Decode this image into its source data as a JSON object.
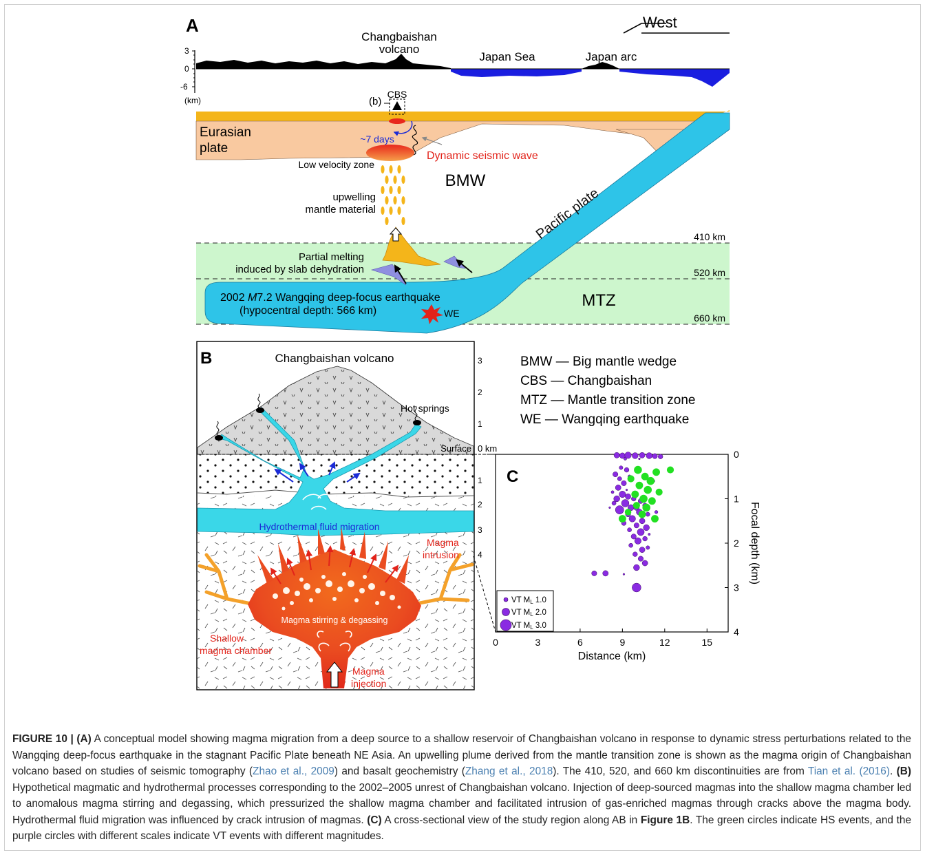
{
  "panelA": {
    "label": "A",
    "direction": "West",
    "topo_ticks": [
      "3",
      "0",
      "-6",
      "(km)"
    ],
    "volcano": [
      "Changbaishan",
      "volcano"
    ],
    "japan_sea": "Japan Sea",
    "japan_arc": "Japan arc",
    "b_marker": "(b)",
    "cbs": "CBS",
    "eurasian": [
      "Eurasian",
      "plate"
    ],
    "days": "~7 days",
    "dynamic_wave": "Dynamic seismic wave",
    "low_velocity": "Low velocity zone",
    "bmw": "BMW",
    "upwelling": [
      "upwelling",
      "mantle material"
    ],
    "pacific": "Pacific plate",
    "d410": "410 km",
    "d520": "520 km",
    "d660": "660 km",
    "partial": [
      "Partial melting",
      "induced by slab dehydration"
    ],
    "quake_pre": "2002 ",
    "quake_mag": "M",
    "quake_post": "7.2 Wangqing deep-focus earthquake",
    "hypo": "(hypocentral depth: 566 km)",
    "we": "WE",
    "mtz": "MTZ"
  },
  "panelB": {
    "label": "B",
    "title": "Changbaishan volcano",
    "hot_springs": "Hot springs",
    "surface": "Surface",
    "zero_km": "0 km",
    "depth_ticks": [
      "3",
      "2",
      "1",
      "1",
      "2",
      "3",
      "4"
    ],
    "hydro": "Hydrothermal fluid migration",
    "intrusion": [
      "Magma",
      "intrusion"
    ],
    "stirring": "Magma stirring & degassing",
    "chamber": [
      "Shallow",
      "magma chamber"
    ],
    "injection": [
      "Magma",
      "injection"
    ]
  },
  "legend": [
    {
      "abbr": "BMW",
      "text": "Big mantle wedge"
    },
    {
      "abbr": "CBS",
      "text": "Changbaishan"
    },
    {
      "abbr": "MTZ",
      "text": "Mantle transition zone"
    },
    {
      "abbr": "WE",
      "text": "Wangqing earthquake"
    }
  ],
  "panelC": {
    "label": "C",
    "legend": [
      {
        "text": "VT  M",
        "sub": "L",
        "val": " 1.0"
      },
      {
        "text": "VT  M",
        "sub": "L",
        "val": " 2.0"
      },
      {
        "text": "VT  M",
        "sub": "L",
        "val": " 3.0"
      }
    ]
  },
  "chart_data": {
    "type": "scatter",
    "title": "",
    "xlabel": "Distance (km)",
    "ylabel": "Focal depth (km)",
    "xlim": [
      0,
      16.5
    ],
    "ylim": [
      4,
      0
    ],
    "xticks": [
      0,
      3,
      6,
      9,
      12,
      15
    ],
    "yticks": [
      0,
      1,
      2,
      3,
      4
    ],
    "colors": {
      "VT": "#8a2be2",
      "HS": "#22e022"
    },
    "series": [
      {
        "name": "VT",
        "points": [
          {
            "x": 8.6,
            "y": 0.02,
            "m": 1.8
          },
          {
            "x": 9.0,
            "y": 0.03,
            "m": 1.8
          },
          {
            "x": 9.4,
            "y": 0.02,
            "m": 2.0
          },
          {
            "x": 9.9,
            "y": 0.03,
            "m": 1.9
          },
          {
            "x": 10.4,
            "y": 0.02,
            "m": 1.8
          },
          {
            "x": 10.9,
            "y": 0.03,
            "m": 1.9
          },
          {
            "x": 11.3,
            "y": 0.04,
            "m": 1.7
          },
          {
            "x": 11.7,
            "y": 0.05,
            "m": 1.6
          },
          {
            "x": 9.2,
            "y": 0.1,
            "m": 1.2
          },
          {
            "x": 10.2,
            "y": 0.1,
            "m": 1.0
          },
          {
            "x": 8.9,
            "y": 0.3,
            "m": 1.4
          },
          {
            "x": 9.3,
            "y": 0.35,
            "m": 1.6
          },
          {
            "x": 8.5,
            "y": 0.45,
            "m": 1.7
          },
          {
            "x": 8.8,
            "y": 0.55,
            "m": 1.5
          },
          {
            "x": 9.5,
            "y": 0.5,
            "m": 1.3
          },
          {
            "x": 9.1,
            "y": 0.65,
            "m": 1.7
          },
          {
            "x": 8.7,
            "y": 0.75,
            "m": 1.8
          },
          {
            "x": 8.3,
            "y": 0.85,
            "m": 1.2
          },
          {
            "x": 9.0,
            "y": 0.9,
            "m": 2.0
          },
          {
            "x": 9.4,
            "y": 0.95,
            "m": 1.8
          },
          {
            "x": 8.6,
            "y": 1.0,
            "m": 1.9
          },
          {
            "x": 9.8,
            "y": 1.0,
            "m": 1.6
          },
          {
            "x": 10.3,
            "y": 1.05,
            "m": 1.7
          },
          {
            "x": 8.4,
            "y": 1.1,
            "m": 1.5
          },
          {
            "x": 9.2,
            "y": 1.1,
            "m": 2.2
          },
          {
            "x": 9.6,
            "y": 1.2,
            "m": 1.9
          },
          {
            "x": 10.0,
            "y": 1.2,
            "m": 1.8
          },
          {
            "x": 10.6,
            "y": 1.15,
            "m": 1.6
          },
          {
            "x": 8.8,
            "y": 1.25,
            "m": 2.4
          },
          {
            "x": 9.4,
            "y": 1.35,
            "m": 1.7
          },
          {
            "x": 10.2,
            "y": 1.3,
            "m": 1.9
          },
          {
            "x": 10.8,
            "y": 1.35,
            "m": 1.5
          },
          {
            "x": 9.7,
            "y": 1.45,
            "m": 2.0
          },
          {
            "x": 10.4,
            "y": 1.5,
            "m": 1.8
          },
          {
            "x": 9.1,
            "y": 1.55,
            "m": 1.6
          },
          {
            "x": 10.0,
            "y": 1.6,
            "m": 1.7
          },
          {
            "x": 10.7,
            "y": 1.65,
            "m": 1.9
          },
          {
            "x": 9.5,
            "y": 1.7,
            "m": 1.5
          },
          {
            "x": 10.3,
            "y": 1.75,
            "m": 2.1
          },
          {
            "x": 9.8,
            "y": 1.85,
            "m": 1.7
          },
          {
            "x": 10.6,
            "y": 1.9,
            "m": 1.6
          },
          {
            "x": 10.1,
            "y": 1.95,
            "m": 2.0
          },
          {
            "x": 9.6,
            "y": 2.05,
            "m": 1.5
          },
          {
            "x": 10.4,
            "y": 2.15,
            "m": 1.8
          },
          {
            "x": 10.8,
            "y": 2.1,
            "m": 1.4
          },
          {
            "x": 9.9,
            "y": 2.25,
            "m": 1.6
          },
          {
            "x": 10.3,
            "y": 2.35,
            "m": 1.7
          },
          {
            "x": 10.6,
            "y": 2.45,
            "m": 1.8
          },
          {
            "x": 10.0,
            "y": 2.55,
            "m": 1.9
          },
          {
            "x": 7.0,
            "y": 2.68,
            "m": 1.7
          },
          {
            "x": 7.8,
            "y": 2.68,
            "m": 1.8
          },
          {
            "x": 9.1,
            "y": 2.7,
            "m": 1.0
          },
          {
            "x": 10.0,
            "y": 3.0,
            "m": 2.5
          },
          {
            "x": 11.2,
            "y": 0.6,
            "m": 1.2
          },
          {
            "x": 11.4,
            "y": 1.3,
            "m": 1.3
          },
          {
            "x": 9.3,
            "y": 0.8,
            "m": 1.0
          },
          {
            "x": 8.1,
            "y": 1.2,
            "m": 1.0
          },
          {
            "x": 10.9,
            "y": 1.8,
            "m": 1.1
          }
        ]
      },
      {
        "name": "HS",
        "points": [
          {
            "x": 10.1,
            "y": 0.35,
            "m": 2.3
          },
          {
            "x": 11.4,
            "y": 0.4,
            "m": 2.2
          },
          {
            "x": 12.4,
            "y": 0.35,
            "m": 2.1
          },
          {
            "x": 10.6,
            "y": 0.5,
            "m": 2.2
          },
          {
            "x": 9.6,
            "y": 0.55,
            "m": 2.1
          },
          {
            "x": 11.0,
            "y": 0.6,
            "m": 2.3
          },
          {
            "x": 10.2,
            "y": 0.7,
            "m": 2.2
          },
          {
            "x": 10.8,
            "y": 0.8,
            "m": 2.3
          },
          {
            "x": 11.6,
            "y": 0.85,
            "m": 2.1
          },
          {
            "x": 9.9,
            "y": 0.9,
            "m": 2.2
          },
          {
            "x": 10.5,
            "y": 1.0,
            "m": 2.3
          },
          {
            "x": 11.1,
            "y": 1.05,
            "m": 2.2
          },
          {
            "x": 10.0,
            "y": 1.15,
            "m": 2.1
          },
          {
            "x": 10.7,
            "y": 1.2,
            "m": 2.3
          },
          {
            "x": 9.4,
            "y": 1.3,
            "m": 2.0
          },
          {
            "x": 10.4,
            "y": 1.35,
            "m": 2.2
          },
          {
            "x": 9.0,
            "y": 1.45,
            "m": 2.2
          },
          {
            "x": 11.3,
            "y": 1.45,
            "m": 2.2
          }
        ]
      }
    ]
  },
  "caption": {
    "label": "FIGURE 10 | ",
    "a": "(A)",
    "t1": " A conceptual model showing magma migration from a deep source to a shallow reservoir of Changbaishan volcano in response to dynamic stress perturbations related to the Wangqing deep-focus earthquake in the stagnant Pacific Plate beneath NE Asia. An upwelling plume derived from the mantle transition zone is shown as the magma origin of Changbaishan volcano based on studies of seismic tomography (",
    "r1": "Zhao et al., 2009",
    "t2": ") and basalt geochemistry (",
    "r2": "Zhang et al., 2018",
    "t3": "). The 410, 520, and 660 km discontinuities are from ",
    "r3": "Tian et al. (2016)",
    "t4": ". ",
    "b": "(B)",
    "t5": " Hypothetical magmatic and hydrothermal processes corresponding to the 2002–2005 unrest of Changbaishan volcano. Injection of deep-sourced magmas into the shallow magma chamber led to anomalous magma stirring and degassing, which pressurized the shallow magma chamber and facilitated intrusion of gas-enriched magmas through cracks above the magma body. Hydrothermal fluid migration was influenced by crack intrusion of magmas. ",
    "c": "(C)",
    "t6": " A cross-sectional view of the study region along AB in ",
    "fig": "Figure 1B",
    "t7": ". The green circles indicate HS events, and the purple circles with different scales indicate VT events with different magnitudes."
  }
}
